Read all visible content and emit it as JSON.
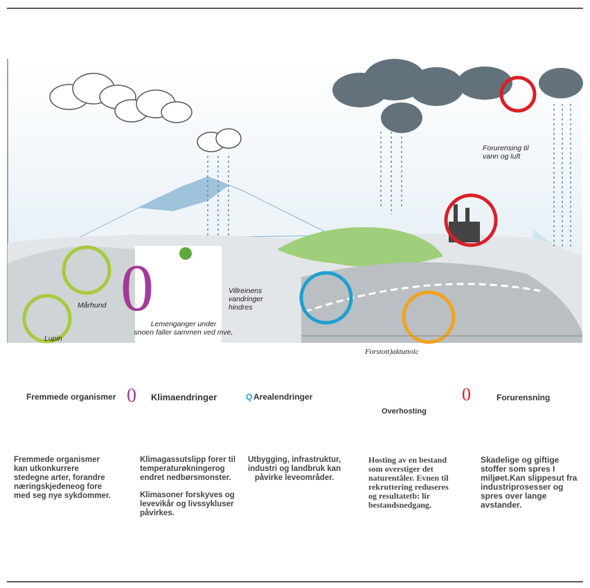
{
  "illustration": {
    "pollution_label": [
      "Forurensing til",
      "vann og luft"
    ],
    "raccoon_dog_label": "Mårhund",
    "lupin_label": "Lupin",
    "reindeer_label": [
      "Villreinens",
      "vandringer",
      "hindres"
    ],
    "climate_icon": "0",
    "lemming_label": [
      "Lemenganger under",
      "snoen faller sammen ved mve,"
    ],
    "caption": "Forstott)aktuttolc"
  },
  "legend": {
    "invasive": "Fremmede organismer",
    "climate_icon": "0",
    "climate": "Klimaendringer",
    "land_icon": "Q",
    "land": "Arealendringer",
    "overharvest": "Overhosting",
    "pollution_icon": "0",
    "pollution": "Forurensning"
  },
  "descriptions": [
    [
      [
        "Fremmede organismer",
        "kan utkonkurrere",
        "stedegne arter, forandre",
        "næringskjedeneog fore",
        "med seg nye sykdommer."
      ]
    ],
    [
      [
        "Klimagassutslipp forer til",
        "temperaturøkningerog",
        "endret nedbørsmonster."
      ],
      [
        "Klimasoner forskyves og",
        "levevikår og livssykluser",
        "påvirkes."
      ]
    ],
    [
      [
        "Utbygging, infrastruktur,",
        "industri og landbruk kan",
        "påvirke leveområder."
      ]
    ],
    [
      [
        "Hosting av en bestand",
        "som overstiger det",
        "naturentåler. Evnen til",
        "rekruttering reduseres",
        "og resultatetb: lir",
        "bestandsnedgang."
      ]
    ],
    [
      [
        "Skadelige og giftige",
        "stoffer som spres I",
        "miljøet.Kan slippesut fra",
        "industriprosesser og",
        "spres over lange",
        "avstander."
      ]
    ]
  ]
}
